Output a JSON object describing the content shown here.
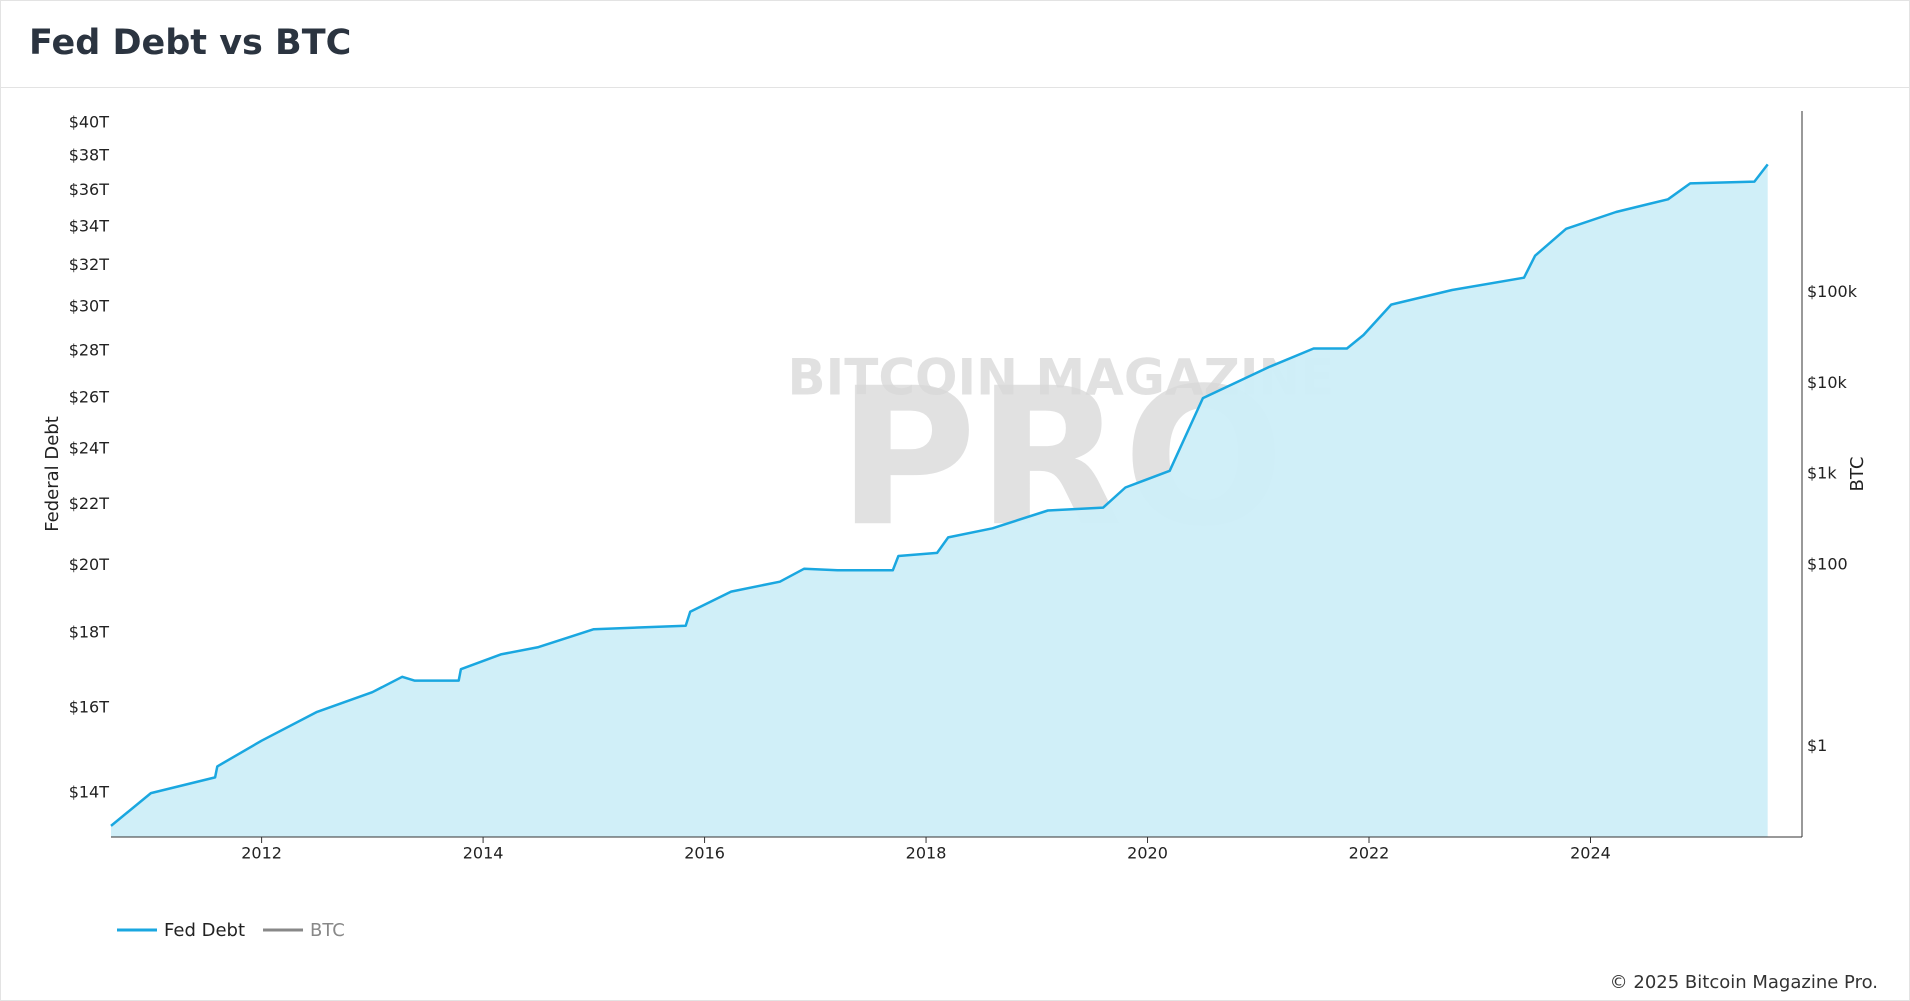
{
  "chart_data": {
    "type": "area",
    "title": "Fed Debt vs BTC",
    "x": [
      2010.64,
      2011.0,
      2011.58,
      2011.6,
      2012.0,
      2012.5,
      2013.0,
      2013.27,
      2013.38,
      2013.78,
      2013.8,
      2014.16,
      2014.5,
      2015.0,
      2015.83,
      2015.87,
      2016.24,
      2016.68,
      2016.9,
      2017.2,
      2017.7,
      2017.75,
      2018.1,
      2018.2,
      2018.6,
      2019.1,
      2019.6,
      2019.8,
      2020.2,
      2020.5,
      2021.1,
      2021.5,
      2021.8,
      2021.95,
      2022.2,
      2022.75,
      2023.4,
      2023.5,
      2023.78,
      2024.23,
      2024.7,
      2024.9,
      2025.48,
      2025.6
    ],
    "series": [
      {
        "name": "Fed Debt",
        "color": "#1aa7e0",
        "fill": "#cdeef8",
        "visible": true,
        "values": [
          13.3,
          14.0,
          14.35,
          14.6,
          15.2,
          15.9,
          16.4,
          16.8,
          16.7,
          16.7,
          17.0,
          17.4,
          17.6,
          18.1,
          18.2,
          18.6,
          19.2,
          19.5,
          19.9,
          19.85,
          19.85,
          20.3,
          20.4,
          20.9,
          21.2,
          21.8,
          21.9,
          22.6,
          23.2,
          26.0,
          27.3,
          28.1,
          28.1,
          28.7,
          30.1,
          30.8,
          31.4,
          32.5,
          33.9,
          34.8,
          35.5,
          36.4,
          36.5,
          37.5
        ]
      },
      {
        "name": "BTC",
        "color": "#888888",
        "axis": "y2",
        "visible": false
      }
    ],
    "y_label": "Federal Debt",
    "y2_label": "BTC",
    "xlim": [
      2010.64,
      2025.91
    ],
    "xticks": [
      2012,
      2014,
      2016,
      2018,
      2020,
      2022,
      2024
    ],
    "ylim": [
      13.07,
      40.77
    ],
    "y_log": true,
    "yticks": [
      {
        "value": 14,
        "label": "$14T"
      },
      {
        "value": 16,
        "label": "$16T"
      },
      {
        "value": 18,
        "label": "$18T"
      },
      {
        "value": 20,
        "label": "$20T"
      },
      {
        "value": 22,
        "label": "$22T"
      },
      {
        "value": 24,
        "label": "$24T"
      },
      {
        "value": 26,
        "label": "$26T"
      },
      {
        "value": 28,
        "label": "$28T"
      },
      {
        "value": 30,
        "label": "$30T"
      },
      {
        "value": 32,
        "label": "$32T"
      },
      {
        "value": 34,
        "label": "$34T"
      },
      {
        "value": 36,
        "label": "$36T"
      },
      {
        "value": 38,
        "label": "$38T"
      },
      {
        "value": 40,
        "label": "$40T"
      }
    ],
    "y2lim": [
      0.1,
      10000000
    ],
    "y2_log": true,
    "y2ticks": [
      {
        "value": 1,
        "label": "$1"
      },
      {
        "value": 100,
        "label": "$100"
      },
      {
        "value": 1000,
        "label": "$1k"
      },
      {
        "value": 10000,
        "label": "$10k"
      },
      {
        "value": 100000,
        "label": "$100k"
      }
    ],
    "legend": "bottom-left",
    "watermark": [
      "BITCOIN MAGAZINE",
      "PRO"
    ],
    "footer": "© 2025 Bitcoin Magazine Pro."
  }
}
